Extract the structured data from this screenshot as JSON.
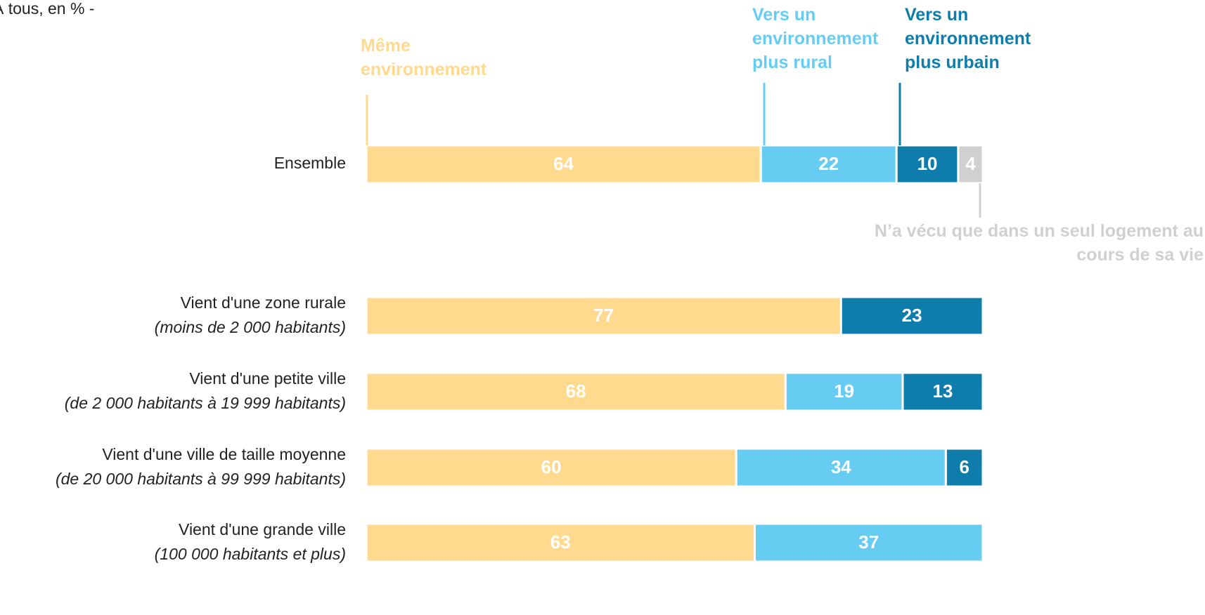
{
  "chart_data": {
    "type": "stacked_bar_horizontal",
    "subtitle": "À tous, en % -",
    "categories": [
      "Ensemble",
      "Vient d'une zone rurale",
      "Vient d'une petite ville",
      "Vient d'une ville de taille moyenne",
      "Vient d'une grande ville"
    ],
    "category_details": [
      null,
      "(moins de 2 000 habitants)",
      "(de 2 000 habitants à 19 999 habitants)",
      "(de 20 000 habitants à 99 999 habitants)",
      "(100 000 habitants et plus)"
    ],
    "xlim": [
      0,
      100
    ],
    "series": [
      {
        "name": "Même environnement",
        "color": "#FFD98E",
        "values": [
          64,
          77,
          68,
          60,
          63
        ]
      },
      {
        "name": "Vers un environnement plus rural",
        "color": "#66CCF2",
        "values": [
          22,
          null,
          19,
          34,
          37
        ]
      },
      {
        "name": "Vers un environnement plus urbain",
        "color": "#0E7DAB",
        "values": [
          10,
          23,
          13,
          6,
          null
        ]
      },
      {
        "name": "N’a vécu que dans un seul logement au cours de sa vie",
        "color": "#D0D0D0",
        "values": [
          4,
          null,
          null,
          null,
          null
        ]
      }
    ]
  }
}
